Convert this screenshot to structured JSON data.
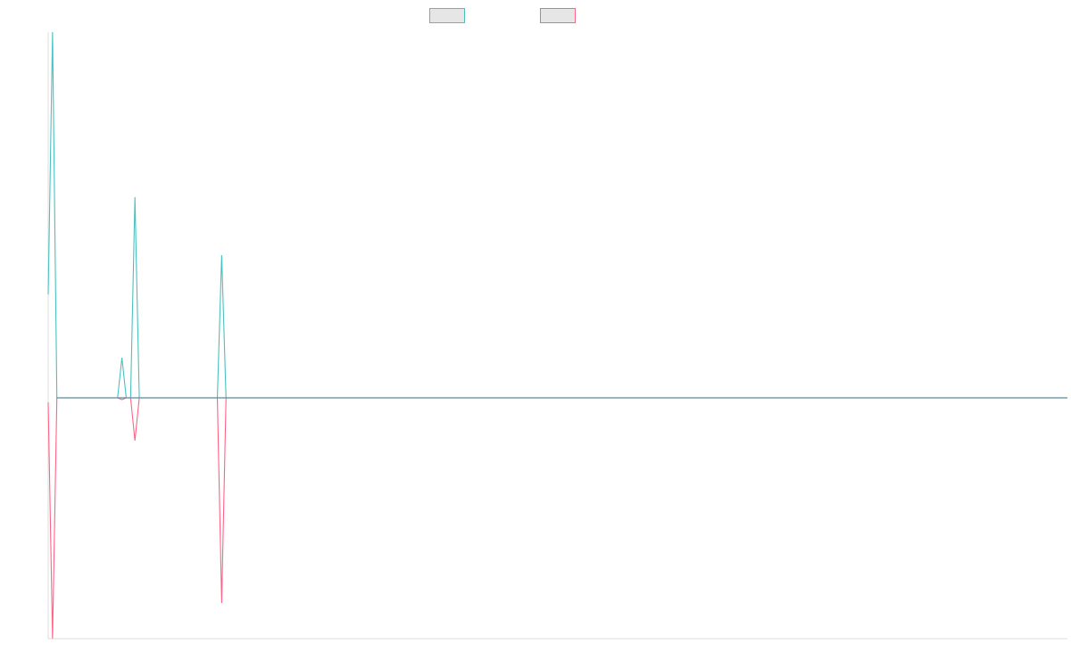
{
  "chart_data": {
    "type": "line",
    "title": "",
    "xlabel": "",
    "ylabel": "",
    "grid": false,
    "legend_position": "top-center",
    "x": [
      0,
      1,
      2,
      3,
      4,
      5,
      6,
      7,
      8,
      9,
      10,
      11,
      12,
      13,
      14,
      15,
      16,
      17,
      18,
      19,
      20,
      21,
      22,
      23,
      24,
      25,
      26,
      27,
      28,
      29,
      30,
      31,
      32,
      33,
      34,
      35,
      36,
      37,
      38,
      39,
      40,
      41,
      42,
      43,
      44,
      45,
      46,
      47,
      48,
      49,
      50,
      51,
      52,
      53,
      54,
      55,
      56,
      57,
      58,
      59,
      60,
      61,
      62,
      63,
      64,
      65,
      66,
      67,
      68,
      69,
      70,
      71,
      72,
      73,
      74,
      75,
      76,
      77,
      78,
      79,
      80,
      81,
      82,
      83,
      84,
      85,
      86,
      87,
      88,
      89,
      90,
      91,
      92,
      93,
      94,
      95,
      96,
      97,
      98,
      99,
      100,
      101,
      102,
      103,
      104,
      105,
      106,
      107,
      108,
      109,
      110,
      111,
      112,
      113,
      114,
      115,
      116,
      117,
      118,
      119,
      120,
      121,
      122,
      123,
      124,
      125,
      126,
      127,
      128,
      129,
      130,
      131,
      132,
      133,
      134,
      135,
      136,
      137,
      138,
      139,
      140,
      141,
      142,
      143,
      144,
      145,
      146,
      147,
      148,
      149,
      150,
      151,
      152,
      153,
      154,
      155,
      156,
      157,
      158,
      159,
      160,
      161,
      162,
      163,
      164,
      165,
      166,
      167,
      168,
      169,
      170,
      171,
      172,
      173,
      174,
      175,
      176,
      177,
      178,
      179,
      180,
      181,
      182,
      183,
      184,
      185,
      186,
      187,
      188,
      189,
      190,
      191,
      192,
      193,
      194,
      195,
      196,
      197,
      198,
      199,
      200,
      201,
      202,
      203,
      204,
      205,
      206,
      207,
      208,
      209,
      210,
      211,
      212,
      213,
      214,
      215,
      216,
      217,
      218,
      219,
      220,
      221,
      222,
      223,
      224,
      225,
      226,
      227,
      228,
      229,
      230,
      231,
      232,
      233,
      234,
      235
    ],
    "ylim": [
      -270,
      410
    ],
    "series": [
      {
        "color": "#4bc0c0",
        "values": [
          116,
          410,
          0,
          0,
          0,
          0,
          0,
          0,
          0,
          0,
          0,
          0,
          0,
          0,
          0,
          0,
          0,
          45,
          0,
          0,
          225,
          0,
          0,
          0,
          0,
          0,
          0,
          0,
          0,
          0,
          0,
          0,
          0,
          0,
          0,
          0,
          0,
          0,
          0,
          0,
          160,
          0,
          0,
          0,
          0,
          0,
          0,
          0,
          0,
          0,
          0,
          0,
          0,
          0,
          0,
          0,
          0,
          0,
          0,
          0,
          0,
          0,
          0,
          0,
          0,
          0,
          0,
          0,
          0,
          0,
          0,
          0,
          0,
          0,
          0,
          0,
          0,
          0,
          0,
          0,
          0,
          0,
          0,
          0,
          0,
          0,
          0,
          0,
          0,
          0,
          0,
          0,
          0,
          0,
          0,
          0,
          0,
          0,
          0,
          0,
          0,
          0,
          0,
          0,
          0,
          0,
          0,
          0,
          0,
          0,
          0,
          0,
          0,
          0,
          0,
          0,
          0,
          0,
          0,
          0,
          0,
          0,
          0,
          0,
          0,
          0,
          0,
          0,
          0,
          0,
          0,
          0,
          0,
          0,
          0,
          0,
          0,
          0,
          0,
          0,
          0,
          0,
          0,
          0,
          0,
          0,
          0,
          0,
          0,
          0,
          0,
          0,
          0,
          0,
          0,
          0,
          0,
          0,
          0,
          0,
          0,
          0,
          0,
          0,
          0,
          0,
          0,
          0,
          0,
          0,
          0,
          0,
          0,
          0,
          0,
          0,
          0,
          0,
          0,
          0,
          0,
          0,
          0,
          0,
          0,
          0,
          0,
          0,
          0,
          0,
          0,
          0,
          0,
          0,
          0,
          0,
          0,
          0,
          0,
          0,
          0,
          0,
          0,
          0,
          0,
          0,
          0,
          0,
          0,
          0,
          0,
          0,
          0,
          0,
          0,
          0,
          0,
          0,
          0,
          0,
          0,
          0,
          0,
          0,
          0,
          0,
          0,
          0,
          0,
          0,
          0,
          0,
          0,
          0,
          0,
          0
        ]
      },
      {
        "color": "#ff6384",
        "values": [
          -5,
          -270,
          0,
          0,
          0,
          0,
          0,
          0,
          0,
          0,
          0,
          0,
          0,
          0,
          0,
          0,
          0,
          -2,
          0,
          0,
          -48,
          0,
          0,
          0,
          0,
          0,
          0,
          0,
          0,
          0,
          0,
          0,
          0,
          0,
          0,
          0,
          0,
          0,
          0,
          0,
          -230,
          0,
          0,
          0,
          0,
          0,
          0,
          0,
          0,
          0,
          0,
          0,
          0,
          0,
          0,
          0,
          0,
          0,
          0,
          0,
          0,
          0,
          0,
          0,
          0,
          0,
          0,
          0,
          0,
          0,
          0,
          0,
          0,
          0,
          0,
          0,
          0,
          0,
          0,
          0,
          0,
          0,
          0,
          0,
          0,
          0,
          0,
          0,
          0,
          0,
          0,
          0,
          0,
          0,
          0,
          0,
          0,
          0,
          0,
          0,
          0,
          0,
          0,
          0,
          0,
          0,
          0,
          0,
          0,
          0,
          0,
          0,
          0,
          0,
          0,
          0,
          0,
          0,
          0,
          0,
          0,
          0,
          0,
          0,
          0,
          0,
          0,
          0,
          0,
          0,
          0,
          0,
          0,
          0,
          0,
          0,
          0,
          0,
          0,
          0,
          0,
          0,
          0,
          0,
          0,
          0,
          0,
          0,
          0,
          0,
          0,
          0,
          0,
          0,
          0,
          0,
          0,
          0,
          0,
          0,
          0,
          0,
          0,
          0,
          0,
          0,
          0,
          0,
          0,
          0,
          0,
          0,
          0,
          0,
          0,
          0,
          0,
          0,
          0,
          0,
          0,
          0,
          0,
          0,
          0,
          0,
          0,
          0,
          0,
          0,
          0,
          0,
          0,
          0,
          0,
          0,
          0,
          0,
          0,
          0,
          0,
          0,
          0,
          0,
          0,
          0,
          0,
          0,
          0,
          0,
          0,
          0,
          0,
          0,
          0,
          0,
          0,
          0,
          0,
          0,
          0,
          0,
          0,
          0,
          0,
          0,
          0,
          0,
          0,
          0,
          0,
          0,
          0,
          0,
          0,
          0
        ]
      }
    ]
  }
}
